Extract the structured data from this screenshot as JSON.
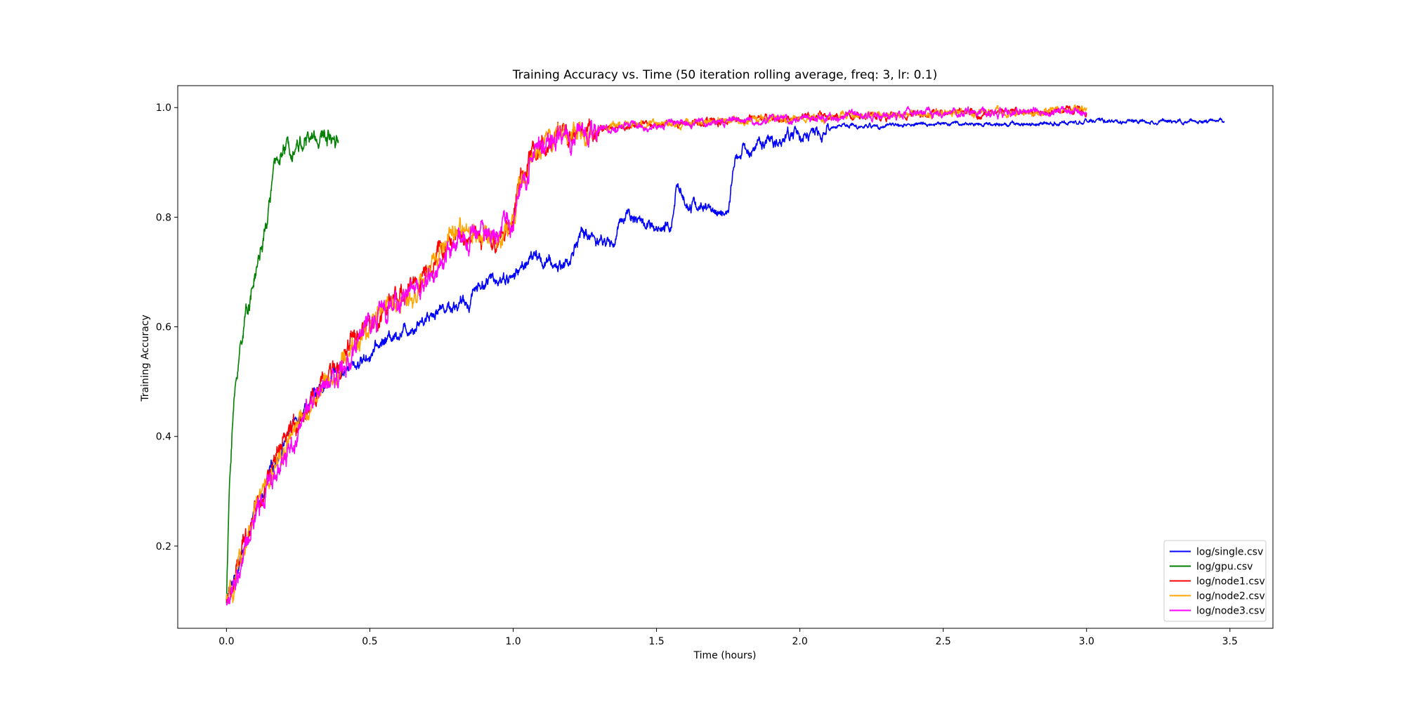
{
  "chart_data": {
    "type": "line",
    "title": "Training Accuracy vs. Time (50 iteration rolling average, freq: 3, lr: 0.1)",
    "xlabel": "Time (hours)",
    "ylabel": "Training Accuracy",
    "xlim": [
      -0.17,
      3.65
    ],
    "ylim": [
      0.05,
      1.04
    ],
    "xticks": [
      0.0,
      0.5,
      1.0,
      1.5,
      2.0,
      2.5,
      3.0,
      3.5
    ],
    "xtick_labels": [
      "0.0",
      "0.5",
      "1.0",
      "1.5",
      "2.0",
      "2.5",
      "3.0",
      "3.5"
    ],
    "yticks": [
      0.2,
      0.4,
      0.6,
      0.8,
      1.0
    ],
    "ytick_labels": [
      "0.2",
      "0.4",
      "0.6",
      "0.8",
      "1.0"
    ],
    "grid": false,
    "legend_position": "lower-right",
    "series": [
      {
        "name": "log/single.csv",
        "color": "#0000ff",
        "noise": 0.006,
        "x": [
          0.0,
          0.05,
          0.1,
          0.15,
          0.2,
          0.25,
          0.3,
          0.35,
          0.4,
          0.45,
          0.5,
          0.55,
          0.6,
          0.65,
          0.7,
          0.75,
          0.8,
          0.85,
          0.86,
          0.9,
          0.95,
          0.98,
          1.0,
          1.05,
          1.08,
          1.1,
          1.15,
          1.2,
          1.23,
          1.25,
          1.3,
          1.35,
          1.38,
          1.4,
          1.45,
          1.48,
          1.5,
          1.55,
          1.57,
          1.6,
          1.65,
          1.7,
          1.75,
          1.76,
          1.78,
          1.8,
          1.85,
          1.9,
          1.95,
          1.98,
          2.0,
          2.05,
          2.08,
          2.1,
          2.15,
          2.2,
          2.3,
          2.5,
          2.7,
          2.9,
          3.0,
          3.2,
          3.4,
          3.48
        ],
        "y": [
          0.1,
          0.18,
          0.25,
          0.33,
          0.39,
          0.44,
          0.47,
          0.5,
          0.52,
          0.53,
          0.55,
          0.575,
          0.59,
          0.6,
          0.62,
          0.635,
          0.64,
          0.645,
          0.67,
          0.68,
          0.69,
          0.69,
          0.69,
          0.72,
          0.73,
          0.72,
          0.71,
          0.72,
          0.77,
          0.77,
          0.76,
          0.75,
          0.8,
          0.81,
          0.79,
          0.78,
          0.77,
          0.78,
          0.86,
          0.83,
          0.82,
          0.81,
          0.81,
          0.85,
          0.91,
          0.92,
          0.93,
          0.935,
          0.945,
          0.955,
          0.95,
          0.95,
          0.952,
          0.96,
          0.97,
          0.965,
          0.968,
          0.97,
          0.97,
          0.972,
          0.975,
          0.975,
          0.977,
          0.976
        ]
      },
      {
        "name": "log/gpu.csv",
        "color": "#008000",
        "noise": 0.008,
        "x": [
          0.0,
          0.005,
          0.01,
          0.02,
          0.03,
          0.04,
          0.05,
          0.06,
          0.07,
          0.08,
          0.09,
          0.1,
          0.11,
          0.12,
          0.13,
          0.14,
          0.15,
          0.16,
          0.17,
          0.18,
          0.2,
          0.22,
          0.25,
          0.28,
          0.3,
          0.33,
          0.36,
          0.39
        ],
        "y": [
          0.1,
          0.2,
          0.3,
          0.42,
          0.48,
          0.53,
          0.57,
          0.6,
          0.63,
          0.65,
          0.67,
          0.69,
          0.72,
          0.74,
          0.76,
          0.78,
          0.83,
          0.87,
          0.89,
          0.91,
          0.92,
          0.93,
          0.935,
          0.94,
          0.945,
          0.945,
          0.95,
          0.95
        ]
      },
      {
        "name": "log/node1.csv",
        "color": "#ff0000",
        "noise": 0.01,
        "x": [
          0.0,
          0.02,
          0.05,
          0.08,
          0.1,
          0.13,
          0.15,
          0.18,
          0.2,
          0.25,
          0.3,
          0.35,
          0.4,
          0.45,
          0.5,
          0.55,
          0.6,
          0.65,
          0.7,
          0.75,
          0.8,
          0.85,
          0.9,
          0.93,
          0.95,
          0.98,
          1.0,
          1.02,
          1.05,
          1.06,
          1.1,
          1.15,
          1.2,
          1.3,
          1.4,
          1.5,
          1.6,
          1.7,
          1.8,
          1.9,
          2.0,
          2.2,
          2.4,
          2.6,
          2.8,
          3.0
        ],
        "y": [
          0.1,
          0.12,
          0.18,
          0.24,
          0.27,
          0.31,
          0.33,
          0.36,
          0.38,
          0.43,
          0.47,
          0.5,
          0.54,
          0.58,
          0.6,
          0.63,
          0.65,
          0.68,
          0.7,
          0.74,
          0.76,
          0.77,
          0.76,
          0.74,
          0.77,
          0.78,
          0.8,
          0.86,
          0.88,
          0.92,
          0.93,
          0.94,
          0.95,
          0.96,
          0.965,
          0.97,
          0.972,
          0.975,
          0.975,
          0.978,
          0.98,
          0.985,
          0.988,
          0.99,
          0.992,
          0.995
        ]
      },
      {
        "name": "log/node2.csv",
        "color": "#ffa500",
        "noise": 0.01,
        "x": [
          0.0,
          0.02,
          0.05,
          0.08,
          0.1,
          0.13,
          0.15,
          0.18,
          0.2,
          0.25,
          0.3,
          0.35,
          0.4,
          0.45,
          0.5,
          0.55,
          0.6,
          0.65,
          0.7,
          0.75,
          0.8,
          0.85,
          0.9,
          0.93,
          0.95,
          0.98,
          1.0,
          1.02,
          1.05,
          1.06,
          1.1,
          1.15,
          1.2,
          1.3,
          1.4,
          1.5,
          1.6,
          1.7,
          1.8,
          1.9,
          2.0,
          2.2,
          2.4,
          2.6,
          2.8,
          3.0
        ],
        "y": [
          0.1,
          0.11,
          0.17,
          0.23,
          0.26,
          0.3,
          0.32,
          0.35,
          0.37,
          0.42,
          0.46,
          0.5,
          0.53,
          0.57,
          0.6,
          0.63,
          0.64,
          0.66,
          0.69,
          0.74,
          0.77,
          0.78,
          0.77,
          0.75,
          0.76,
          0.77,
          0.79,
          0.85,
          0.87,
          0.92,
          0.93,
          0.945,
          0.952,
          0.962,
          0.967,
          0.97,
          0.972,
          0.975,
          0.977,
          0.979,
          0.98,
          0.985,
          0.988,
          0.99,
          0.992,
          0.995
        ]
      },
      {
        "name": "log/node3.csv",
        "color": "#ff00ff",
        "noise": 0.011,
        "x": [
          0.0,
          0.02,
          0.05,
          0.08,
          0.1,
          0.13,
          0.15,
          0.18,
          0.2,
          0.25,
          0.3,
          0.35,
          0.4,
          0.45,
          0.5,
          0.55,
          0.6,
          0.65,
          0.7,
          0.75,
          0.8,
          0.85,
          0.9,
          0.93,
          0.95,
          0.98,
          1.0,
          1.02,
          1.05,
          1.06,
          1.1,
          1.15,
          1.2,
          1.3,
          1.4,
          1.5,
          1.6,
          1.7,
          1.8,
          1.9,
          2.0,
          2.2,
          2.4,
          2.6,
          2.8,
          3.0
        ],
        "y": [
          0.1,
          0.11,
          0.16,
          0.22,
          0.25,
          0.29,
          0.31,
          0.34,
          0.36,
          0.41,
          0.46,
          0.49,
          0.52,
          0.56,
          0.61,
          0.63,
          0.65,
          0.67,
          0.68,
          0.72,
          0.75,
          0.76,
          0.78,
          0.76,
          0.77,
          0.8,
          0.79,
          0.86,
          0.88,
          0.92,
          0.93,
          0.94,
          0.95,
          0.96,
          0.966,
          0.97,
          0.972,
          0.975,
          0.976,
          0.978,
          0.98,
          0.985,
          0.988,
          0.99,
          0.992,
          0.995
        ]
      }
    ]
  }
}
